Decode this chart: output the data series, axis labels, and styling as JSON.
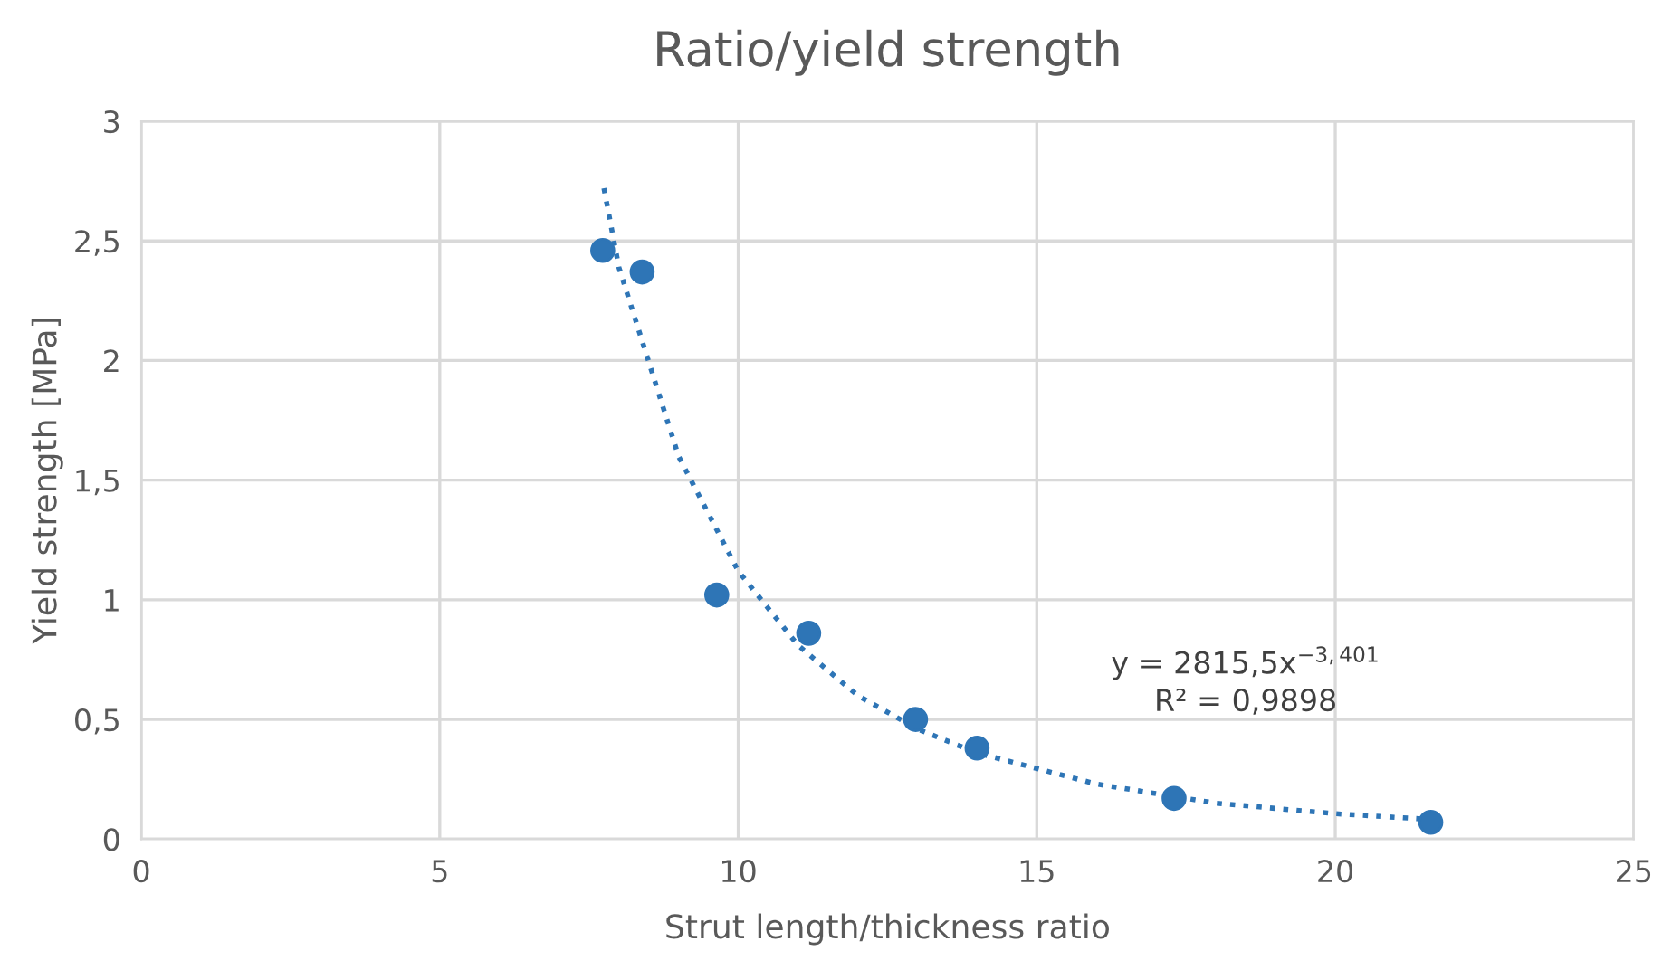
{
  "chart_data": {
    "type": "scatter",
    "title": "Ratio/yield strength",
    "xlabel": "Strut length/thickness ratio",
    "ylabel": "Yield strength [MPa]",
    "xlim": [
      0,
      25
    ],
    "xticks": [
      0,
      5,
      10,
      15,
      20,
      25
    ],
    "ylim": [
      0,
      3
    ],
    "yticks": [
      0,
      {
        "value": 0.5,
        "label": "0,5"
      },
      1,
      {
        "value": 1.5,
        "label": "1,5"
      },
      2,
      {
        "value": 2.5,
        "label": "2,5"
      },
      3
    ],
    "grid": true,
    "legend": false,
    "series": [
      {
        "color": "#2e75b6",
        "marker": "circle",
        "x": [
          7.73,
          8.39,
          9.64,
          11.18,
          12.97,
          14.0,
          17.3,
          21.6
        ],
        "values": [
          2.46,
          2.37,
          1.02,
          0.86,
          0.5,
          0.38,
          0.17,
          0.07
        ]
      },
      {
        "type": "line",
        "color": "#2e75b6",
        "line_style": "dotted",
        "marker": "none",
        "x": [
          7.75,
          8,
          9,
          10,
          11,
          12,
          13,
          14,
          16,
          18,
          20,
          21.6
        ],
        "values": [
          2.72,
          2.39,
          1.6,
          1.12,
          0.81,
          0.6,
          0.46,
          0.36,
          0.23,
          0.15,
          0.106,
          0.082
        ]
      }
    ],
    "annotations": [
      "y = 2815,5x$^{−3,401}$",
      "R² = 0,9898"
    ]
  }
}
